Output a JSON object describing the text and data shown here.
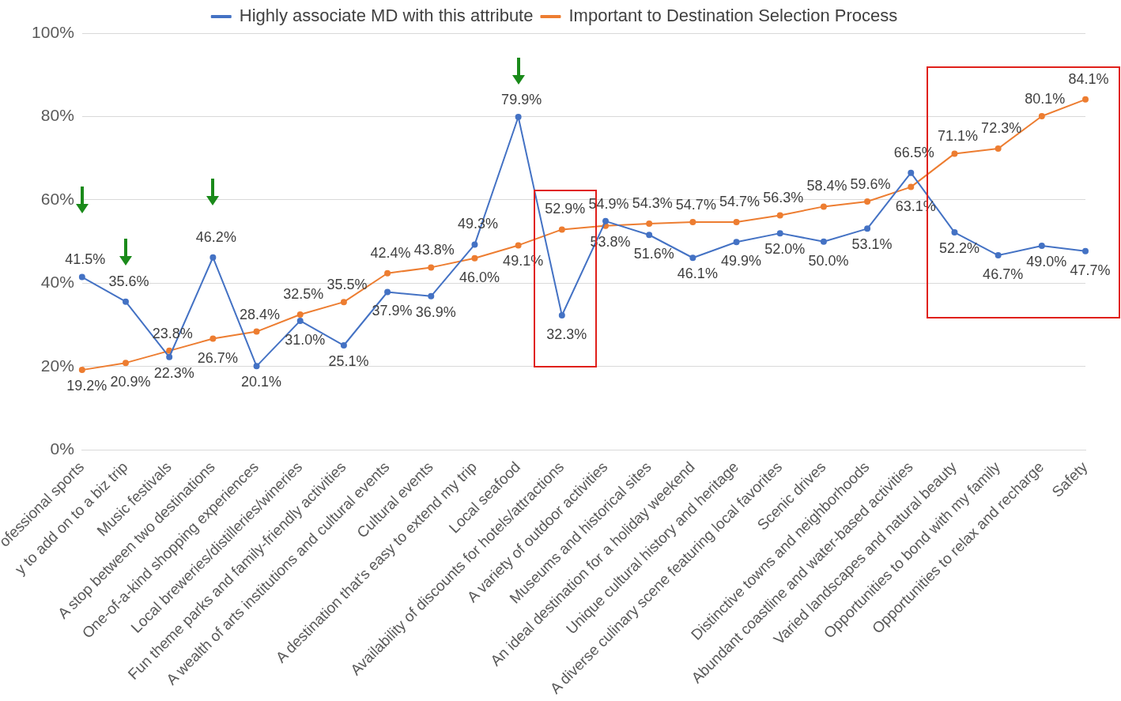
{
  "chart_data": {
    "type": "line",
    "categories": [
      "ofessional sports",
      "y to add on to a biz trip",
      "Music festivals",
      "A stop between two destinations",
      "One-of-a-kind shopping experiences",
      "Local breweries/distilleries/wineries",
      "Fun theme parks and family-friendly activities",
      "A wealth of arts institutions and cultural events",
      "Cultural events",
      "A destination that's easy to extend my trip",
      "Local seafood",
      "Availability of discounts for hotels/attractions",
      "A variety of outdoor activities",
      "Museums and historical sites",
      "An ideal destination for a holiday weekend",
      "Unique cultural history and heritage",
      "A diverse culinary scene featuring local favorites",
      "Scenic drives",
      "Distinctive towns and neighborhoods",
      "Abundant coastline and water-based activities",
      "Varied landscapes and natural beauty",
      "Opportunities to bond with my family",
      "Opportunities to relax and recharge",
      "Safety"
    ],
    "series": [
      {
        "name": "Highly associate MD with this attribute",
        "color": "#4472c4",
        "values": [
          41.5,
          35.6,
          22.3,
          46.2,
          20.1,
          31.0,
          25.1,
          37.9,
          36.9,
          49.3,
          79.9,
          32.3,
          54.9,
          51.6,
          46.1,
          49.9,
          52.0,
          50.0,
          53.1,
          66.5,
          52.2,
          46.7,
          49.0,
          47.7
        ],
        "value_labels": [
          "41.5%",
          "35.6%",
          "22.3%",
          "46.2%",
          "20.1%",
          "31.0%",
          "25.1%",
          "37.9%",
          "36.9%",
          "49.3%",
          "79.9%",
          "32.3%",
          "54.9%",
          "51.6%",
          "46.1%",
          "49.9%",
          "52.0%",
          "50.0%",
          "53.1%",
          "66.5%",
          "52.2%",
          "46.7%",
          "49.0%",
          "47.7%"
        ]
      },
      {
        "name": "Important to Destination Selection Process",
        "color": "#ed7d31",
        "values": [
          19.2,
          20.9,
          23.8,
          26.7,
          28.4,
          32.5,
          35.5,
          42.4,
          43.8,
          46.0,
          49.1,
          52.9,
          53.8,
          54.3,
          54.7,
          54.7,
          56.3,
          58.4,
          59.6,
          63.1,
          71.1,
          72.3,
          80.1,
          84.1
        ],
        "value_labels": [
          "19.2%",
          "20.9%",
          "23.8%",
          "26.7%",
          "28.4%",
          "32.5%",
          "35.5%",
          "42.4%",
          "43.8%",
          "46.0%",
          "49.1%",
          "52.9%",
          "53.8%",
          "54.3%",
          "54.7%",
          "54.7%",
          "56.3%",
          "58.4%",
          "59.6%",
          "63.1%",
          "71.1%",
          "72.3%",
          "80.1%",
          "84.1%"
        ]
      }
    ],
    "ylim": [
      0,
      100
    ],
    "yticks": [
      {
        "value": 0,
        "label": "0%"
      },
      {
        "value": 20,
        "label": "20%"
      },
      {
        "value": 40,
        "label": "40%"
      },
      {
        "value": 60,
        "label": "60%"
      },
      {
        "value": 80,
        "label": "80%"
      },
      {
        "value": 100,
        "label": "100%"
      }
    ],
    "grid": "y",
    "legend": "top",
    "marker": "circle",
    "line_style": "solid"
  }
}
